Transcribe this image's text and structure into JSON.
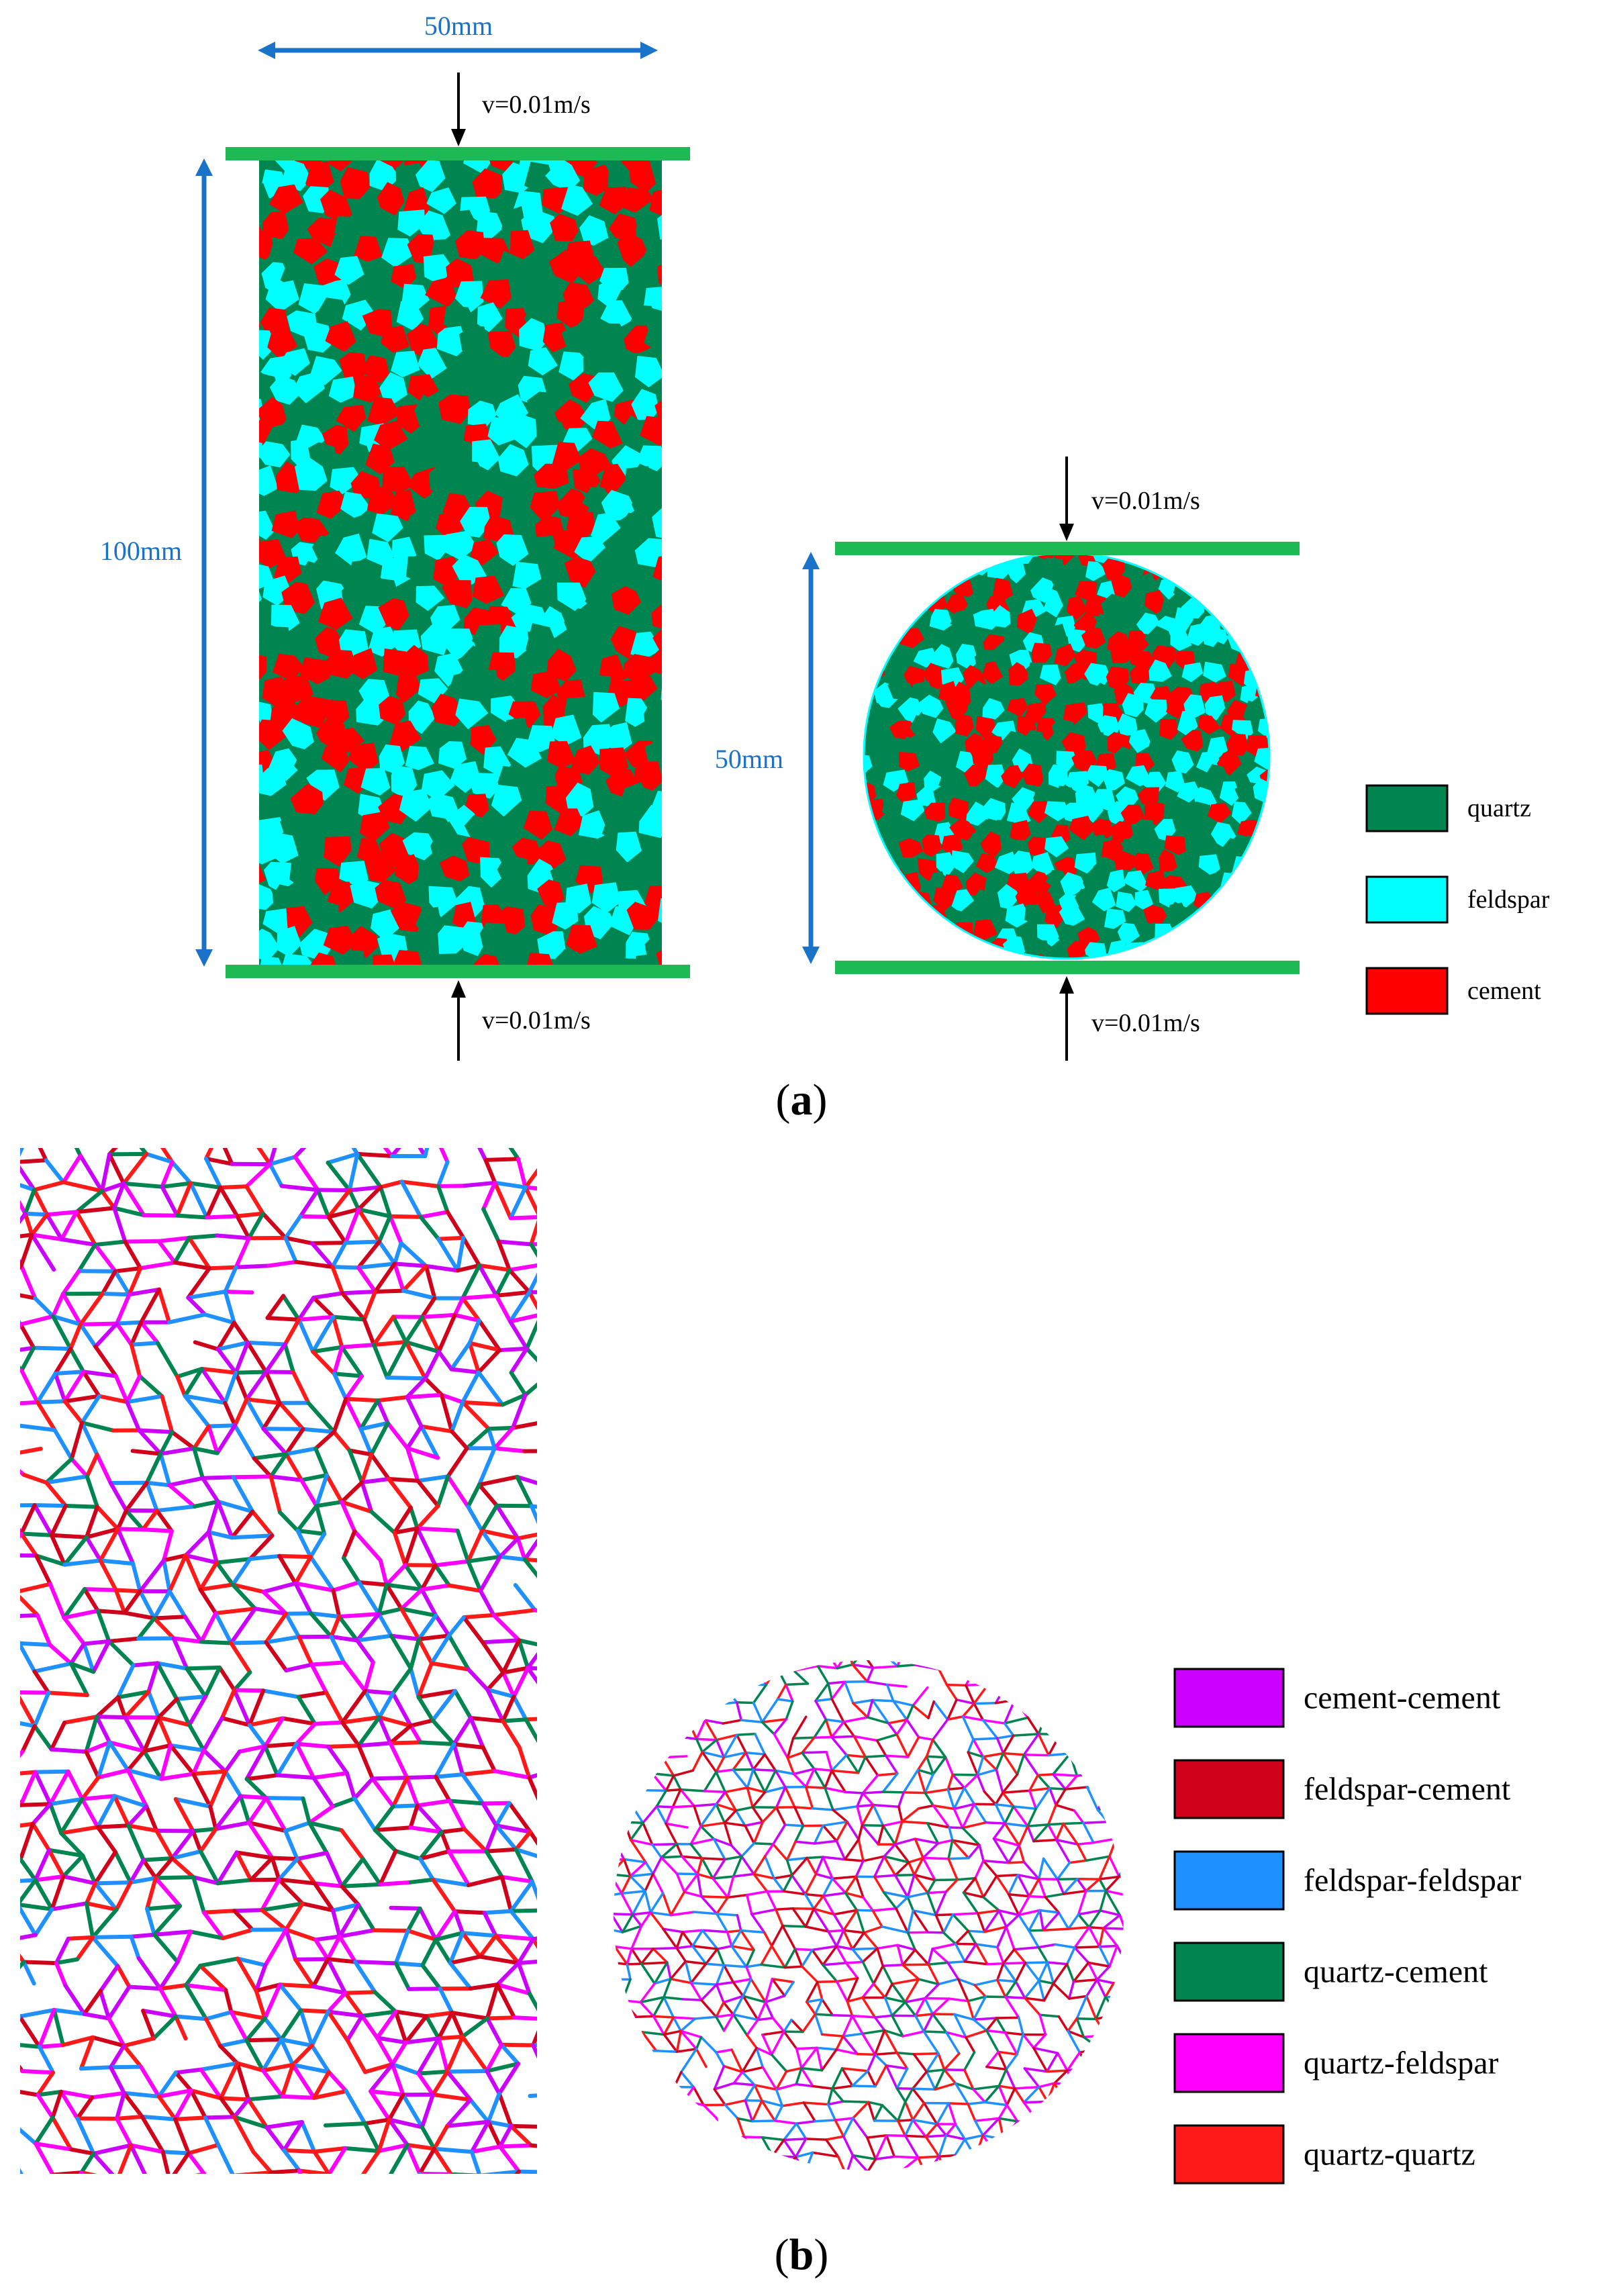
{
  "panel_a": {
    "label": "a",
    "rect_specimen": {
      "width_label": "50mm",
      "height_label": "100mm",
      "top_velocity": "v=0.01m/s",
      "bottom_velocity": "v=0.01m/s"
    },
    "disc_specimen": {
      "diameter_label": "50mm",
      "top_velocity": "v=0.01m/s",
      "bottom_velocity": "v=0.01m/s"
    },
    "legend": [
      {
        "label": "quartz",
        "color": "#008450"
      },
      {
        "label": "feldspar",
        "color": "#00ffff"
      },
      {
        "label": "cement",
        "color": "#ff0000"
      }
    ]
  },
  "panel_b": {
    "label": "b",
    "legend": [
      {
        "label": "cement-cement",
        "color": "#cc00ff"
      },
      {
        "label": "feldspar-cement",
        "color": "#d0021b"
      },
      {
        "label": "feldspar-feldspar",
        "color": "#1e90ff"
      },
      {
        "label": "quartz-cement",
        "color": "#008450"
      },
      {
        "label": "quartz-feldspar",
        "color": "#ff00ff"
      },
      {
        "label": "quartz-quartz",
        "color": "#ff1a1a"
      }
    ]
  },
  "colors": {
    "platen": "#1db954",
    "dimension": "#1a73c8",
    "arrow": "#000000"
  }
}
